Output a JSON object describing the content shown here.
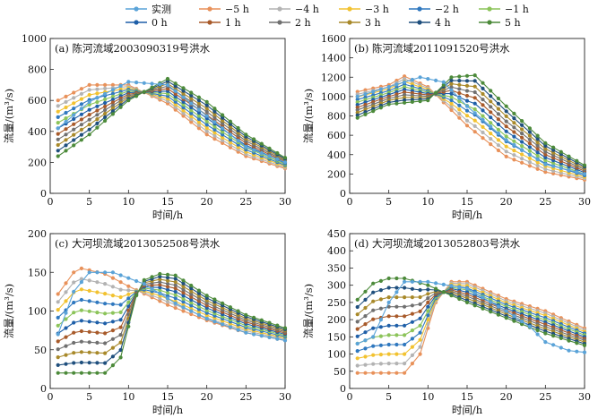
{
  "legend": {
    "items": [
      {
        "label": "实测",
        "color": "#5aa3d8"
      },
      {
        "label": "−5 h",
        "color": "#e8915a"
      },
      {
        "label": "−4 h",
        "color": "#b3b3b3"
      },
      {
        "label": "−3 h",
        "color": "#f2c230"
      },
      {
        "label": "−2 h",
        "color": "#2f78bf"
      },
      {
        "label": "−1 h",
        "color": "#8cc45a"
      },
      {
        "label": "0 h",
        "color": "#1e5fa8"
      },
      {
        "label": "1 h",
        "color": "#a85a2a"
      },
      {
        "label": "2 h",
        "color": "#707070"
      },
      {
        "label": "3 h",
        "color": "#a8892a"
      },
      {
        "label": "4 h",
        "color": "#1f4f7d"
      },
      {
        "label": "5 h",
        "color": "#4c8a3a"
      }
    ]
  },
  "chart_data": [
    {
      "type": "line",
      "title": "(a) 陈河流域2003090319号洪水",
      "xlabel": "时间/h",
      "ylabel": "流量/(m³/s)",
      "xlim": [
        0,
        30
      ],
      "ylim": [
        0,
        1000
      ],
      "xticks": [
        0,
        5,
        10,
        15,
        20,
        25,
        30
      ],
      "yticks": [
        0,
        200,
        400,
        600,
        800,
        1000
      ],
      "series": [
        {
          "name": "实测",
          "values": [
            [
              1,
              420
            ],
            [
              5,
              590
            ],
            [
              10,
              720
            ],
            [
              15,
              700
            ],
            [
              20,
              500
            ],
            [
              25,
              300
            ],
            [
              30,
              200
            ]
          ]
        },
        {
          "name": "−5 h",
          "values": [
            [
              1,
              600
            ],
            [
              5,
              700
            ],
            [
              10,
              700
            ],
            [
              15,
              580
            ],
            [
              20,
              380
            ],
            [
              25,
              240
            ],
            [
              30,
              160
            ]
          ]
        },
        {
          "name": "5 h",
          "values": [
            [
              1,
              240
            ],
            [
              5,
              380
            ],
            [
              10,
              600
            ],
            [
              15,
              740
            ],
            [
              20,
              590
            ],
            [
              25,
              380
            ],
            [
              30,
              230
            ]
          ]
        }
      ]
    },
    {
      "type": "line",
      "title": "(b) 陈河流域2011091520号洪水",
      "xlabel": "时间/h",
      "ylabel": "流量/(m³/s)",
      "xlim": [
        0,
        30
      ],
      "ylim": [
        0,
        1600
      ],
      "xticks": [
        0,
        5,
        10,
        15,
        20,
        25,
        30
      ],
      "yticks": [
        0,
        200,
        400,
        600,
        800,
        1000,
        1200,
        1400,
        1600
      ],
      "series": [
        {
          "name": "实测",
          "values": [
            [
              1,
              1000
            ],
            [
              5,
              1100
            ],
            [
              9,
              1200
            ],
            [
              12,
              1150
            ],
            [
              15,
              900
            ],
            [
              20,
              550
            ],
            [
              25,
              300
            ],
            [
              30,
              200
            ]
          ]
        },
        {
          "name": "−5 h",
          "values": [
            [
              1,
              1050
            ],
            [
              5,
              1120
            ],
            [
              7,
              1210
            ],
            [
              10,
              1100
            ],
            [
              15,
              700
            ],
            [
              20,
              380
            ],
            [
              25,
              220
            ],
            [
              30,
              140
            ]
          ]
        },
        {
          "name": "5 h",
          "values": [
            [
              1,
              780
            ],
            [
              5,
              920
            ],
            [
              10,
              960
            ],
            [
              13,
              1200
            ],
            [
              16,
              1220
            ],
            [
              20,
              900
            ],
            [
              25,
              520
            ],
            [
              30,
              290
            ]
          ]
        }
      ]
    },
    {
      "type": "line",
      "title": "(c) 大河坝流域2013052508号洪水",
      "xlabel": "时间/h",
      "ylabel": "流量/(m³/s)",
      "xlim": [
        0,
        30
      ],
      "ylim": [
        0,
        200
      ],
      "xticks": [
        0,
        5,
        10,
        15,
        20,
        25,
        30
      ],
      "yticks": [
        0,
        50,
        100,
        150,
        200
      ],
      "series": [
        {
          "name": "实测",
          "values": [
            [
              1,
              70
            ],
            [
              3,
              125
            ],
            [
              5,
              150
            ],
            [
              8,
              150
            ],
            [
              12,
              135
            ],
            [
              16,
              110
            ],
            [
              20,
              90
            ],
            [
              25,
              72
            ],
            [
              30,
              62
            ]
          ]
        },
        {
          "name": "−5 h",
          "values": [
            [
              1,
              122
            ],
            [
              3,
              150
            ],
            [
              4,
              155
            ],
            [
              7,
              148
            ],
            [
              10,
              132
            ],
            [
              15,
              108
            ],
            [
              20,
              88
            ],
            [
              25,
              72
            ],
            [
              30,
              62
            ]
          ]
        },
        {
          "name": "5 h",
          "values": [
            [
              1,
              20
            ],
            [
              7,
              20
            ],
            [
              9,
              40
            ],
            [
              11,
              120
            ],
            [
              12,
              140
            ],
            [
              14,
              148
            ],
            [
              16,
              146
            ],
            [
              20,
              120
            ],
            [
              25,
              95
            ],
            [
              30,
              78
            ]
          ]
        }
      ]
    },
    {
      "type": "line",
      "title": "(d) 大河坝流域2013052803号洪水",
      "xlabel": "时间/h",
      "ylabel": "流量/(m³/s)",
      "xlim": [
        0,
        30
      ],
      "ylim": [
        0,
        450
      ],
      "xticks": [
        0,
        5,
        10,
        15,
        20,
        25,
        30
      ],
      "yticks": [
        0,
        50,
        100,
        150,
        200,
        250,
        300,
        350,
        400,
        450
      ],
      "series": [
        {
          "name": "实测",
          "values": [
            [
              1,
              130
            ],
            [
              3,
              150
            ],
            [
              5,
              250
            ],
            [
              7,
              310
            ],
            [
              10,
              310
            ],
            [
              15,
              290
            ],
            [
              20,
              225
            ],
            [
              23,
              180
            ],
            [
              25,
              135
            ],
            [
              28,
              110
            ],
            [
              30,
              105
            ]
          ]
        },
        {
          "name": "−5 h",
          "values": [
            [
              1,
              45
            ],
            [
              7,
              45
            ],
            [
              9,
              100
            ],
            [
              11,
              250
            ],
            [
              13,
              310
            ],
            [
              15,
              310
            ],
            [
              20,
              260
            ],
            [
              25,
              225
            ],
            [
              30,
              175
            ]
          ]
        },
        {
          "name": "5 h",
          "values": [
            [
              1,
              258
            ],
            [
              3,
              305
            ],
            [
              5,
              320
            ],
            [
              7,
              320
            ],
            [
              10,
              300
            ],
            [
              15,
              250
            ],
            [
              20,
              205
            ],
            [
              25,
              160
            ],
            [
              30,
              125
            ]
          ]
        }
      ]
    }
  ]
}
